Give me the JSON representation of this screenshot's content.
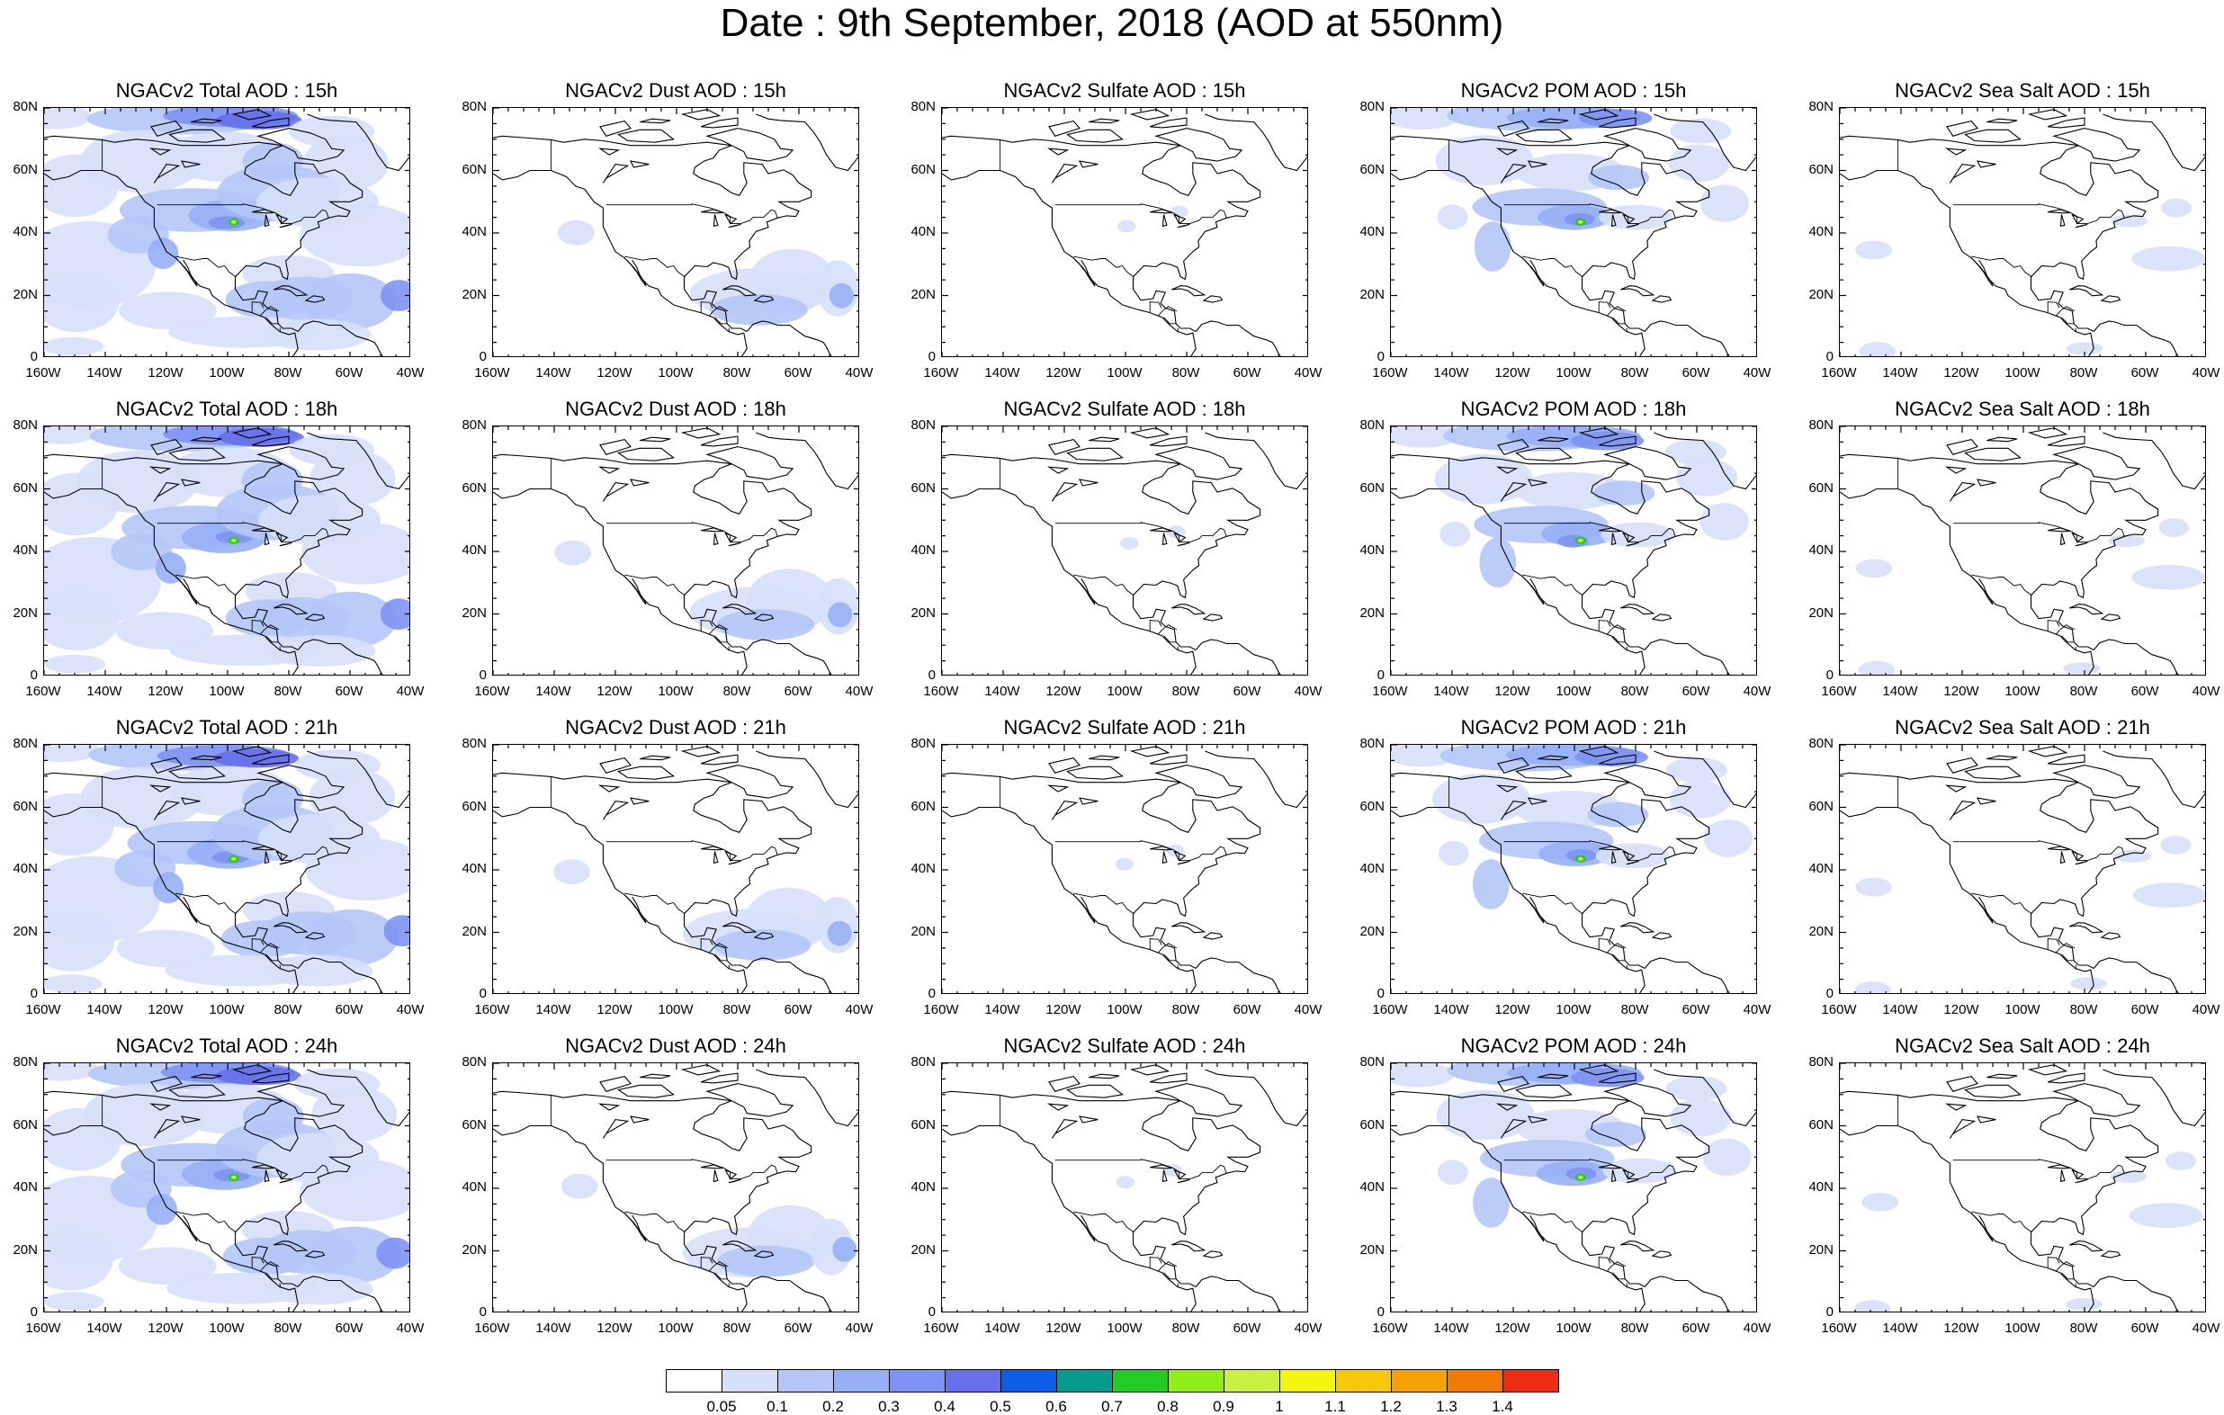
{
  "title": "Date : 9th September, 2018 (AOD at 550nm)",
  "lat_labels": [
    "80N",
    "60N",
    "40N",
    "20N",
    "0"
  ],
  "lon_labels": [
    "160W",
    "140W",
    "120W",
    "100W",
    "80W",
    "60W",
    "40W"
  ],
  "rows": [
    {
      "time": "15h",
      "titles": [
        "NGACv2 Total AOD : 15h",
        "NGACv2 Dust AOD : 15h",
        "NGACv2 Sulfate AOD : 15h",
        "NGACv2 POM AOD : 15h",
        "NGACv2 Sea Salt AOD : 15h"
      ]
    },
    {
      "time": "18h",
      "titles": [
        "NGACv2 Total AOD : 18h",
        "NGACv2 Dust AOD : 18h",
        "NGACv2 Sulfate AOD : 18h",
        "NGACv2 POM AOD : 18h",
        "NGACv2 Sea Salt AOD : 18h"
      ]
    },
    {
      "time": "21h",
      "titles": [
        "NGACv2 Total AOD : 21h",
        "NGACv2 Dust AOD : 21h",
        "NGACv2 Sulfate AOD : 21h",
        "NGACv2 POM AOD : 21h",
        "NGACv2 Sea Salt AOD : 21h"
      ]
    },
    {
      "time": "24h",
      "titles": [
        "NGACv2 Total AOD : 24h",
        "NGACv2 Dust AOD : 24h",
        "NGACv2 Sulfate AOD : 24h",
        "NGACv2 POM AOD : 24h",
        "NGACv2 Sea Salt  AOD : 24h"
      ]
    }
  ],
  "species": [
    "total",
    "dust",
    "sulfate",
    "pom",
    "seasalt"
  ],
  "colorbar": {
    "labels": [
      "0.05",
      "0.1",
      "0.2",
      "0.3",
      "0.4",
      "0.5",
      "0.6",
      "0.7",
      "0.8",
      "0.9",
      "1",
      "1.1",
      "1.2",
      "1.3",
      "1.4"
    ],
    "colors": [
      "#ffffff",
      "#d6e0fa",
      "#b4c6f7",
      "#96b0f5",
      "#7d94f2",
      "#6670ea",
      "#0d5ee6",
      "#089b8f",
      "#22cc22",
      "#92ee1a",
      "#c8f040",
      "#f4f40e",
      "#f7c70c",
      "#f5a104",
      "#f17a06",
      "#ee2b14"
    ]
  }
}
